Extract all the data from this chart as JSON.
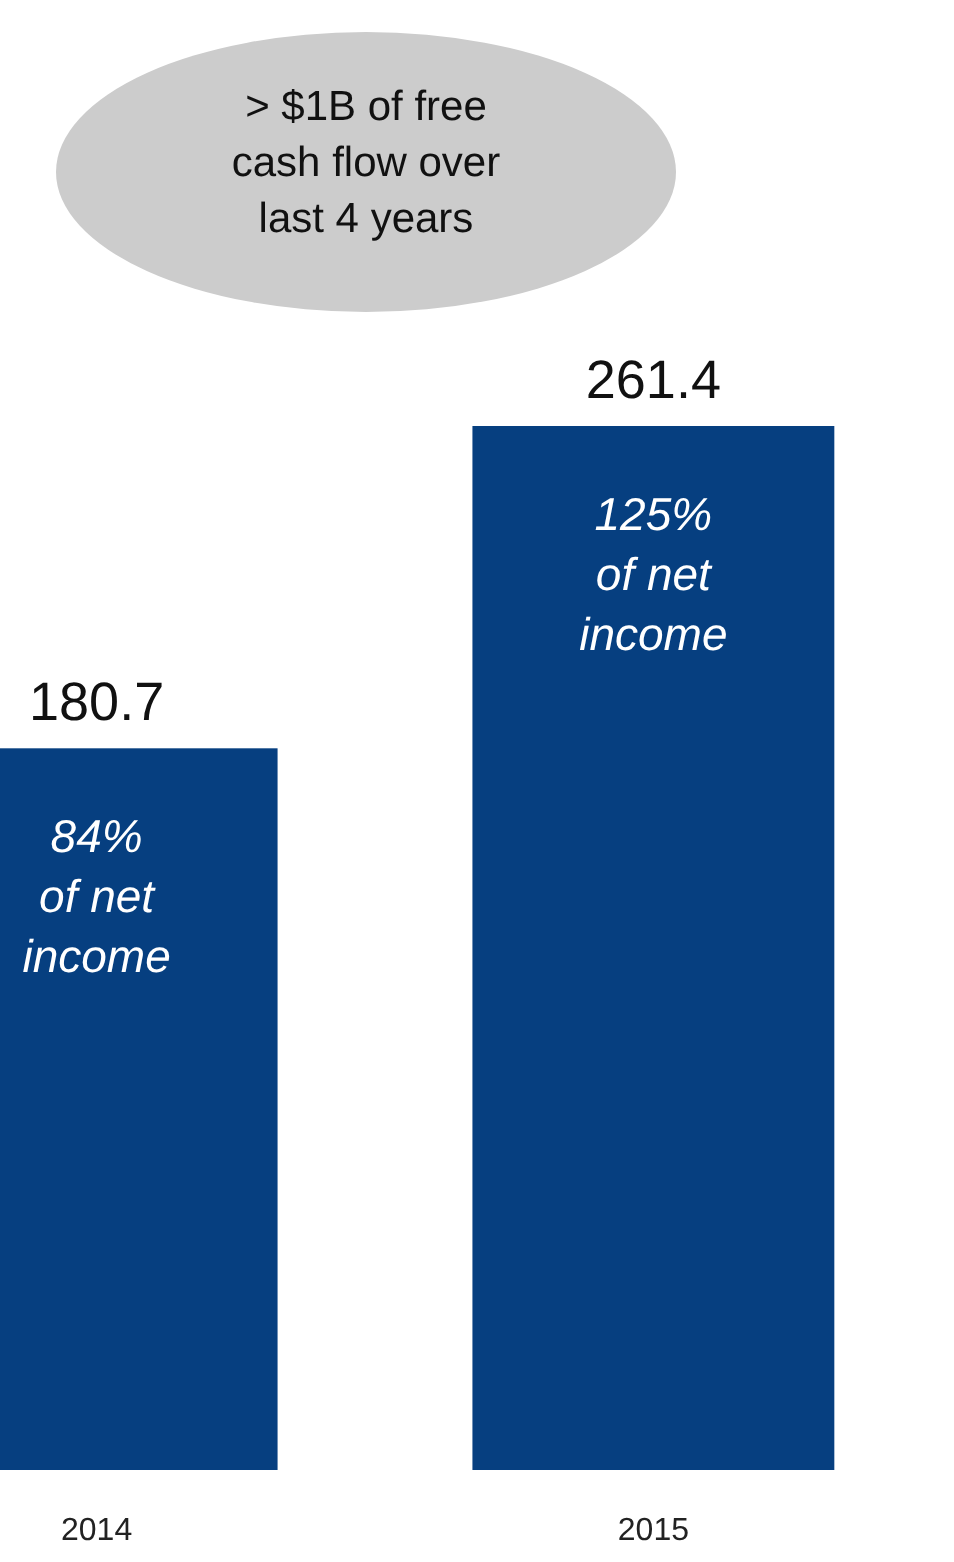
{
  "chart_data": {
    "type": "bar",
    "categories": [
      "2014",
      "2015"
    ],
    "values": [
      180.7,
      261.4
    ],
    "color": "#063f80",
    "data_labels": true,
    "annotations": [
      "84%\nof net\nincome",
      "125%\nof net\nincome",
      "> $1B of free\ncash flow over\nlast 4 years"
    ]
  }
}
